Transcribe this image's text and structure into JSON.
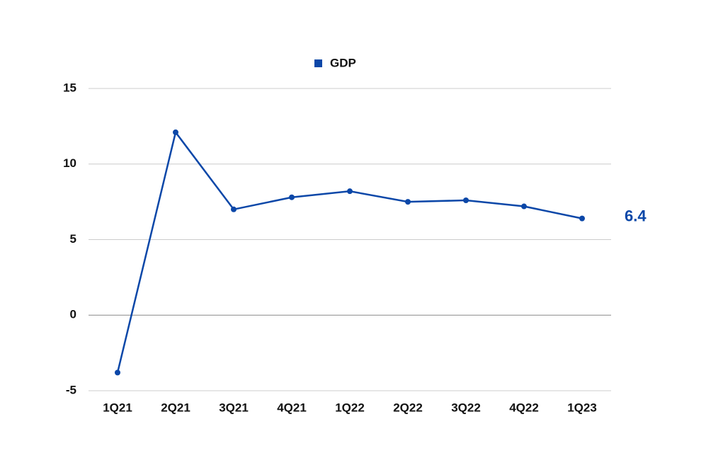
{
  "chart_data": {
    "type": "line",
    "categories": [
      "1Q21",
      "2Q21",
      "3Q21",
      "4Q21",
      "1Q22",
      "2Q22",
      "3Q22",
      "4Q22",
      "1Q23"
    ],
    "series": [
      {
        "name": "GDP",
        "color": "#0b47a8",
        "values": [
          -3.8,
          12.1,
          7.0,
          7.8,
          8.2,
          7.5,
          7.6,
          7.2,
          6.4
        ]
      }
    ],
    "ylim": [
      -5,
      15
    ],
    "yticks": [
      -5,
      0,
      5,
      10,
      15
    ],
    "grid": true,
    "legend": "top"
  }
}
